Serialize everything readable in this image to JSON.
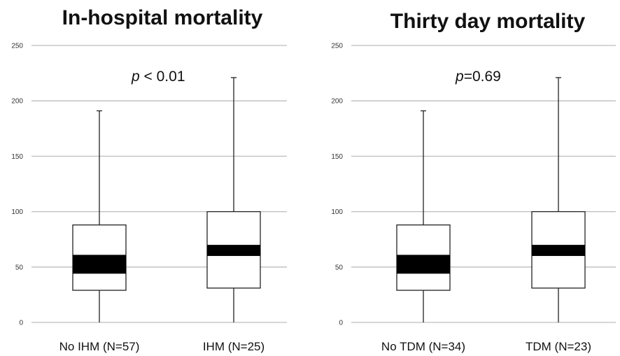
{
  "chart_data": [
    {
      "type": "box",
      "title": "In-hospital mortality",
      "annotation_p": "p",
      "annotation_value": " < 0.01",
      "ylim": [
        0,
        250
      ],
      "yticks": [
        0,
        50,
        100,
        150,
        200,
        250
      ],
      "grid": true,
      "categories": [
        "No IHM (N=57)",
        "IHM (N=25)"
      ],
      "boxes": [
        {
          "min": 0,
          "q1": 29,
          "median_low": 44,
          "median_high": 61,
          "q3": 88,
          "max": 191
        },
        {
          "min": 0,
          "q1": 31,
          "median_low": 60,
          "median_high": 70,
          "q3": 100,
          "max": 221
        }
      ]
    },
    {
      "type": "box",
      "title": "Thirty day mortality",
      "annotation_p": "p",
      "annotation_value": "=0.69",
      "ylim": [
        0,
        250
      ],
      "yticks": [
        0,
        50,
        100,
        150,
        200,
        250
      ],
      "grid": true,
      "categories": [
        "No TDM (N=34)",
        "TDM (N=23)"
      ],
      "boxes": [
        {
          "min": 0,
          "q1": 29,
          "median_low": 44,
          "median_high": 61,
          "q3": 88,
          "max": 191
        },
        {
          "min": 0,
          "q1": 31,
          "median_low": 60,
          "median_high": 70,
          "q3": 100,
          "max": 221
        }
      ]
    }
  ]
}
